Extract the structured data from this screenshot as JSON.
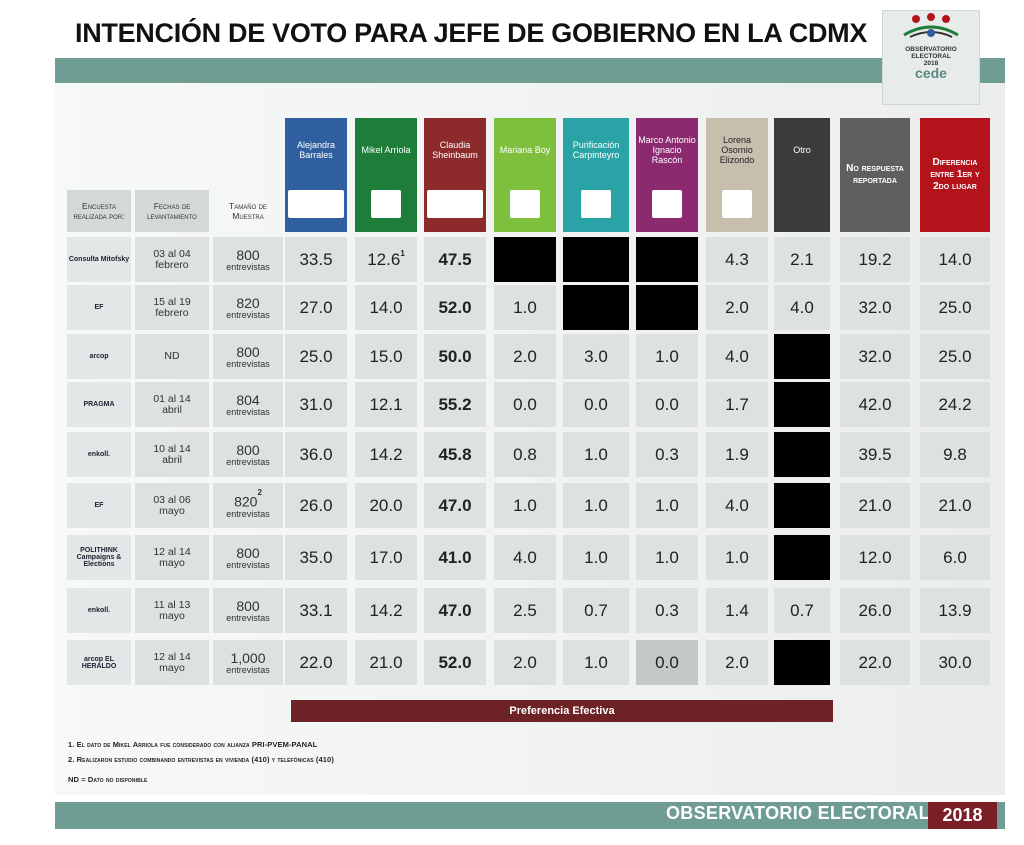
{
  "title": "INTENCIÓN DE VOTO PARA JEFE DE GOBIERNO EN LA CDMX",
  "logo": {
    "line1": "OBSERVATORIO",
    "line2": "ELECTORAL",
    "line3": "2018",
    "brand": "cede"
  },
  "row_headers": {
    "encuesta": "Encuesta realizada por:",
    "fechas": "Fechas de levantamiento",
    "tamano": "Tamaño de Muestra"
  },
  "candidates": [
    {
      "name": "Alejandra Barrales",
      "color": "#2f5f9e",
      "text_color": "#ffffff"
    },
    {
      "name": "Mikel Arriola",
      "color": "#1f7d3a",
      "text_color": "#ffffff"
    },
    {
      "name": "Claudia Sheinbaum",
      "color": "#8c2a2c",
      "text_color": "#ffffff"
    },
    {
      "name": "Mariana Boy",
      "color": "#7fbf3e",
      "text_color": "#ffffff"
    },
    {
      "name": "Purificación Carpinteyro",
      "color": "#2aa3a6",
      "text_color": "#ffffff"
    },
    {
      "name": "Marco Antonio Ignacio Rascón",
      "color": "#8b2a6f",
      "text_color": "#ffffff"
    },
    {
      "name": "Lorena Osornio Elizondo",
      "color": "#c7beae",
      "text_color": "#222222"
    },
    {
      "name": "Otro",
      "color": "#3b3b3b",
      "text_color": "#ffffff"
    }
  ],
  "extra_headers": [
    {
      "name": "No respuesta reportada",
      "color": "#5f5f5f"
    },
    {
      "name": "Diferencia entre 1er y 2do lugar",
      "color": "#b3141b"
    }
  ],
  "chart_data": {
    "type": "table",
    "title": "INTENCIÓN DE VOTO PARA JEFE DE GOBIERNO EN LA CDMX",
    "columns": [
      "Alejandra Barrales",
      "Mikel Arriola",
      "Claudia Sheinbaum",
      "Mariana Boy",
      "Purificación Carpinteyro",
      "Marco Antonio Ignacio Rascón",
      "Lorena Osornio Elizondo",
      "Otro",
      "No respuesta reportada",
      "Diferencia entre 1er y 2do lugar"
    ],
    "rows": [
      {
        "source": "Consulta Mitofsky",
        "fechas": "03 al 04 febrero",
        "tamano": "800",
        "tamano_unit": "entrevistas",
        "values": [
          "33.5",
          "12.6",
          "47.5",
          "",
          "",
          "",
          "4.3",
          "2.1",
          "19.2",
          "14.0"
        ]
      },
      {
        "source": "EF",
        "fechas": "15 al 19 febrero",
        "tamano": "820",
        "tamano_unit": "entrevistas",
        "values": [
          "27.0",
          "14.0",
          "52.0",
          "1.0",
          "",
          "",
          "2.0",
          "4.0",
          "32.0",
          "25.0"
        ]
      },
      {
        "source": "arcop",
        "fechas": "ND",
        "tamano": "800",
        "tamano_unit": "entrevistas",
        "values": [
          "25.0",
          "15.0",
          "50.0",
          "2.0",
          "3.0",
          "1.0",
          "4.0",
          "",
          "32.0",
          "25.0"
        ]
      },
      {
        "source": "PRAGMA",
        "fechas": "01 al 14 abril",
        "tamano": "804",
        "tamano_unit": "entrevistas",
        "values": [
          "31.0",
          "12.1",
          "55.2",
          "0.0",
          "0.0",
          "0.0",
          "1.7",
          "",
          "42.0",
          "24.2"
        ]
      },
      {
        "source": "enkoll.",
        "fechas": "10 al 14 abril",
        "tamano": "800",
        "tamano_unit": "entrevistas",
        "values": [
          "36.0",
          "14.2",
          "45.8",
          "0.8",
          "1.0",
          "0.3",
          "1.9",
          "",
          "39.5",
          "9.8"
        ]
      },
      {
        "source": "EF",
        "fechas": "03 al 06 mayo",
        "tamano": "820",
        "tamano_unit": "entrevistas",
        "values": [
          "26.0",
          "20.0",
          "47.0",
          "1.0",
          "1.0",
          "1.0",
          "4.0",
          "",
          "21.0",
          "21.0"
        ]
      },
      {
        "source": "POLITHINK Campaigns & Elections",
        "fechas": "12 al 14 mayo",
        "tamano": "800",
        "tamano_unit": "entrevistas",
        "values": [
          "35.0",
          "17.0",
          "41.0",
          "4.0",
          "1.0",
          "1.0",
          "1.0",
          "",
          "12.0",
          "6.0"
        ]
      },
      {
        "source": "enkoll.",
        "fechas": "11 al 13 mayo",
        "tamano": "800",
        "tamano_unit": "entrevistas",
        "values": [
          "33.1",
          "14.2",
          "47.0",
          "2.5",
          "0.7",
          "0.3",
          "1.4",
          "0.7",
          "26.0",
          "13.9"
        ]
      },
      {
        "source": "arcop EL HERALDO",
        "fechas": "12 al 14 mayo",
        "tamano": "1,000",
        "tamano_unit": "entrevistas",
        "values": [
          "22.0",
          "21.0",
          "52.0",
          "2.0",
          "1.0",
          "0.0",
          "2.0",
          "",
          "22.0",
          "30.0"
        ]
      }
    ],
    "black_cells": [
      [
        0,
        3
      ],
      [
        0,
        4
      ],
      [
        0,
        5
      ],
      [
        1,
        4
      ],
      [
        1,
        5
      ],
      [
        2,
        7
      ],
      [
        3,
        7
      ],
      [
        4,
        7
      ],
      [
        5,
        7
      ],
      [
        6,
        7
      ],
      [
        8,
        7
      ]
    ],
    "superscripts": {
      "arriola_row0": "1",
      "tamano_row5": "2"
    }
  },
  "preferencia_label": "Preferencia Efectiva",
  "notes": [
    "1.  El dato de Mikel Arriola fue considerado con alianza PRI-PVEM-PANAL",
    "2.  Realizaron estudio combinando  entrevistas en vivienda (410) y telefónicas (410)",
    "ND = Dato no disponible"
  ],
  "footer": {
    "text": "OBSERVATORIO ELECTORAL",
    "year": "2018"
  }
}
